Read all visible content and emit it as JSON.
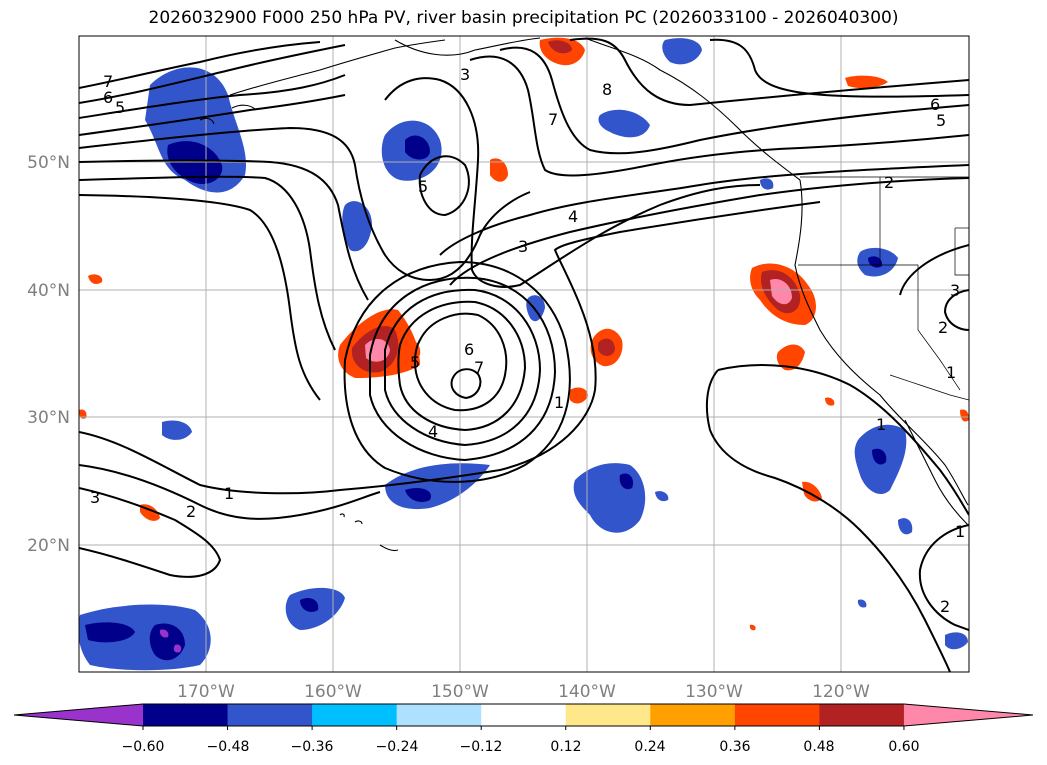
{
  "title": "2026032900 F000 250 hPa PV, river basin precipitation PC (2026033100 - 2026040300)",
  "lat_labels": [
    "50°N",
    "40°N",
    "30°N",
    "20°N"
  ],
  "lon_labels": [
    "170°W",
    "160°W",
    "150°W",
    "140°W",
    "130°W",
    "120°W"
  ],
  "colorbar": {
    "ticks": [
      "−0.60",
      "−0.48",
      "−0.36",
      "−0.24",
      "−0.12",
      "0.12",
      "0.24",
      "0.36",
      "0.48",
      "0.60"
    ],
    "colors": [
      "#9933cc",
      "#00008b",
      "#3355cc",
      "#00bfff",
      "#aee0ff",
      "#ffffff",
      "#ffe88a",
      "#ffa000",
      "#ff4500",
      "#b22222",
      "#ff88aa"
    ]
  },
  "contour_labels": [
    "7",
    "6",
    "5",
    "3",
    "8",
    "7",
    "6",
    "5",
    "5",
    "4",
    "3",
    "6",
    "7",
    "5",
    "4",
    "1",
    "1",
    "2",
    "3",
    "1",
    "1",
    "2",
    "2",
    "1",
    "3",
    "2"
  ]
}
